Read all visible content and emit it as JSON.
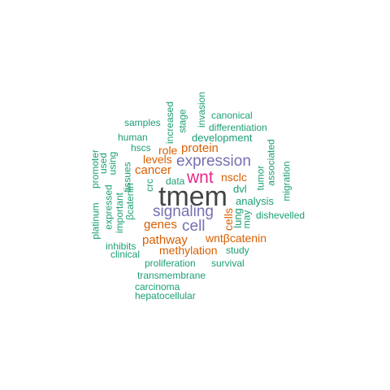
{
  "words": {
    "tmem": "tmem",
    "wnt": "wnt",
    "expression": "expression",
    "signaling": "signaling",
    "cell": "cell",
    "cancer": "cancer",
    "protein": "protein",
    "genes": "genes",
    "pathway": "pathway",
    "methylation": "methylation",
    "wntbcatenin": "wntβcatenin",
    "nsclc": "nsclc",
    "levels": "levels",
    "role": "role",
    "lung": "lung",
    "cells": "cells",
    "analysis": "analysis",
    "dvl": "dvl",
    "dishevelled": "dishevelled",
    "data": "data",
    "crc": "crc",
    "tissues": "tissues",
    "bcatenin": "βcatenin",
    "important": "important",
    "expressed": "expressed",
    "platinum": "platinum",
    "promoter": "promoter",
    "used": "used",
    "using": "using",
    "hscs": "hscs",
    "human": "human",
    "samples": "samples",
    "increased": "increased",
    "stage": "stage",
    "invasion": "invasion",
    "canonical": "canonical",
    "differentiation": "differentiation",
    "development": "development",
    "tumor": "tumor",
    "associated": "associated",
    "migration": "migration",
    "may": "may",
    "study": "study",
    "survival": "survival",
    "proliferation": "proliferation",
    "transmembrane": "transmembrane",
    "carcinoma": "carcinoma",
    "hepatocellular": "hepatocellular",
    "inhibits": "inhibits",
    "clinical": "clinical"
  },
  "colors": {
    "green": "#1b9e77",
    "orange": "#d95f02",
    "purple": "#7570b3",
    "magenta": "#e7298a",
    "gray": "#444444"
  }
}
